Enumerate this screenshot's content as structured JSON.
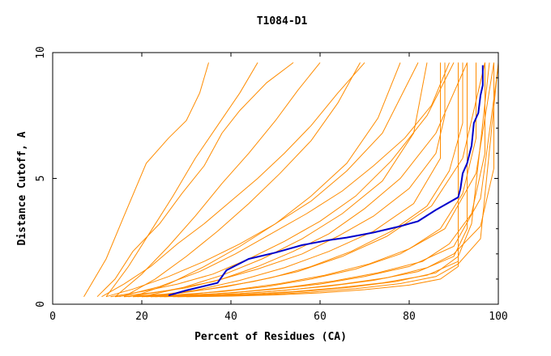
{
  "chart_data": {
    "type": "line",
    "title": "T1084-D1",
    "xlabel": "Percent of Residues (CA)",
    "ylabel": "Distance Cutoff, A",
    "xlim": [
      0,
      100
    ],
    "ylim": [
      0,
      10
    ],
    "xticks": [
      0,
      20,
      40,
      60,
      80,
      100
    ],
    "yticks": [
      0,
      5,
      10
    ],
    "grid": false,
    "colors": {
      "highlight": "#0000cc",
      "background_series": "#ff8c00",
      "frame": "#000000"
    },
    "highlight_series": {
      "x": [
        26,
        30,
        37,
        39,
        44,
        50,
        56,
        62,
        66,
        72,
        78,
        82,
        86,
        91,
        91.5,
        92,
        93,
        94,
        94.5,
        95.5,
        96,
        96.5,
        96.5
      ],
      "y": [
        0.35,
        0.55,
        0.85,
        1.35,
        1.8,
        2.05,
        2.35,
        2.55,
        2.65,
        2.85,
        3.1,
        3.3,
        3.75,
        4.25,
        4.6,
        5.2,
        5.6,
        6.3,
        7.2,
        7.6,
        8.3,
        8.7,
        9.5
      ]
    },
    "background_series": [
      {
        "x": [
          7,
          12,
          16,
          21,
          26,
          30,
          33,
          35
        ],
        "y": [
          0.3,
          1.8,
          3.5,
          5.6,
          6.6,
          7.3,
          8.4,
          9.6
        ]
      },
      {
        "x": [
          10,
          14,
          18,
          24,
          29,
          34,
          38,
          42,
          48,
          54
        ],
        "y": [
          0.3,
          1.0,
          2.1,
          3.2,
          4.4,
          5.5,
          6.8,
          7.7,
          8.8,
          9.6
        ]
      },
      {
        "x": [
          11,
          16,
          22,
          28,
          34,
          40,
          46,
          52,
          58,
          64,
          70
        ],
        "y": [
          0.3,
          0.8,
          1.5,
          2.4,
          3.2,
          4.1,
          5.0,
          6.0,
          7.1,
          8.4,
          9.6
        ]
      },
      {
        "x": [
          12,
          18,
          26,
          34,
          42,
          50,
          58,
          66,
          74,
          82
        ],
        "y": [
          0.3,
          0.6,
          1.1,
          1.7,
          2.4,
          3.2,
          4.1,
          5.3,
          6.8,
          9.6
        ]
      },
      {
        "x": [
          13,
          20,
          28,
          36,
          44,
          52,
          60,
          68,
          76,
          84,
          90
        ],
        "y": [
          0.3,
          0.5,
          0.8,
          1.2,
          1.8,
          2.5,
          3.3,
          4.3,
          5.7,
          7.5,
          9.6
        ]
      },
      {
        "x": [
          14,
          22,
          30,
          38,
          46,
          54,
          62,
          70,
          78,
          86,
          93
        ],
        "y": [
          0.3,
          0.45,
          0.65,
          1.0,
          1.5,
          2.1,
          2.8,
          3.8,
          5.0,
          6.8,
          9.6
        ]
      },
      {
        "x": [
          16,
          25,
          35,
          45,
          55,
          65,
          75,
          85,
          92,
          97
        ],
        "y": [
          0.3,
          0.4,
          0.6,
          0.9,
          1.3,
          1.9,
          2.7,
          3.9,
          5.8,
          9.6
        ]
      },
      {
        "x": [
          18,
          28,
          38,
          48,
          58,
          68,
          78,
          88,
          95,
          99
        ],
        "y": [
          0.3,
          0.38,
          0.5,
          0.7,
          1.0,
          1.4,
          2.0,
          3.0,
          5.2,
          9.6
        ]
      },
      {
        "x": [
          20,
          30,
          40,
          50,
          60,
          70,
          80,
          90,
          96,
          100
        ],
        "y": [
          0.3,
          0.36,
          0.45,
          0.6,
          0.8,
          1.1,
          1.5,
          2.3,
          4.2,
          9.5
        ]
      },
      {
        "x": [
          22,
          32,
          42,
          52,
          62,
          72,
          82,
          90,
          93,
          93
        ],
        "y": [
          0.3,
          0.34,
          0.42,
          0.55,
          0.72,
          0.95,
          1.3,
          1.9,
          3.0,
          9.6
        ]
      },
      {
        "x": [
          24,
          34,
          44,
          54,
          64,
          74,
          84,
          91,
          91
        ],
        "y": [
          0.3,
          0.33,
          0.4,
          0.5,
          0.65,
          0.85,
          1.15,
          1.7,
          9.6
        ]
      },
      {
        "x": [
          15,
          24,
          33,
          41,
          49,
          57,
          65,
          72,
          79,
          85,
          89
        ],
        "y": [
          0.3,
          0.7,
          1.3,
          2.0,
          2.8,
          3.6,
          4.5,
          5.5,
          6.6,
          7.9,
          9.6
        ]
      },
      {
        "x": [
          17,
          26,
          36,
          46,
          56,
          64,
          72,
          80,
          86,
          88,
          88
        ],
        "y": [
          0.3,
          0.55,
          0.9,
          1.4,
          2.0,
          2.7,
          3.5,
          4.6,
          6.0,
          7.5,
          9.6
        ]
      },
      {
        "x": [
          19,
          29,
          39,
          49,
          58,
          67,
          76,
          84,
          89,
          92,
          92
        ],
        "y": [
          0.3,
          0.45,
          0.7,
          1.05,
          1.5,
          2.1,
          2.9,
          3.9,
          5.3,
          7.2,
          9.6
        ]
      },
      {
        "x": [
          21,
          31,
          41,
          51,
          61,
          71,
          80,
          87,
          92,
          95,
          95
        ],
        "y": [
          0.3,
          0.4,
          0.58,
          0.82,
          1.15,
          1.6,
          2.2,
          3.0,
          4.4,
          6.6,
          9.6
        ]
      },
      {
        "x": [
          23,
          33,
          43,
          53,
          63,
          73,
          83,
          89,
          94,
          97,
          97
        ],
        "y": [
          0.3,
          0.37,
          0.5,
          0.68,
          0.92,
          1.25,
          1.7,
          2.4,
          3.6,
          6.0,
          9.6
        ]
      },
      {
        "x": [
          25,
          35,
          45,
          55,
          65,
          75,
          84,
          90,
          96,
          99,
          99
        ],
        "y": [
          0.3,
          0.35,
          0.45,
          0.6,
          0.8,
          1.05,
          1.45,
          2.0,
          3.1,
          5.4,
          9.6
        ]
      },
      {
        "x": [
          12,
          17,
          22,
          27,
          32,
          37,
          42,
          46
        ],
        "y": [
          0.3,
          1.5,
          2.9,
          4.3,
          5.8,
          7.1,
          8.4,
          9.6
        ]
      },
      {
        "x": [
          14,
          20,
          26,
          32,
          38,
          44,
          50,
          55,
          60
        ],
        "y": [
          0.3,
          1.2,
          2.3,
          3.5,
          4.8,
          6.0,
          7.3,
          8.5,
          9.6
        ]
      },
      {
        "x": [
          16,
          23,
          30,
          37,
          44,
          51,
          58,
          64,
          69
        ],
        "y": [
          0.3,
          1.0,
          1.9,
          2.9,
          4.0,
          5.2,
          6.5,
          8.0,
          9.6
        ]
      },
      {
        "x": [
          18,
          26,
          34,
          42,
          50,
          58,
          66,
          73,
          78
        ],
        "y": [
          0.3,
          0.8,
          1.5,
          2.3,
          3.2,
          4.3,
          5.6,
          7.4,
          9.6
        ]
      },
      {
        "x": [
          20,
          29,
          38,
          47,
          56,
          65,
          74,
          81,
          84
        ],
        "y": [
          0.3,
          0.65,
          1.15,
          1.8,
          2.6,
          3.6,
          4.9,
          6.8,
          9.6
        ]
      },
      {
        "x": [
          22,
          32,
          42,
          52,
          62,
          72,
          81,
          87,
          87
        ],
        "y": [
          0.3,
          0.55,
          0.95,
          1.45,
          2.1,
          2.9,
          4.0,
          5.8,
          9.6
        ]
      },
      {
        "x": [
          27,
          37,
          47,
          57,
          67,
          77,
          86,
          91,
          94,
          98
        ],
        "y": [
          0.3,
          0.33,
          0.4,
          0.52,
          0.68,
          0.9,
          1.25,
          1.9,
          3.2,
          9.6
        ]
      },
      {
        "x": [
          28,
          38,
          48,
          58,
          68,
          78,
          86,
          91,
          96,
          100
        ],
        "y": [
          0.3,
          0.32,
          0.38,
          0.48,
          0.62,
          0.82,
          1.1,
          1.6,
          2.6,
          9.6
        ]
      },
      {
        "x": [
          30,
          40,
          50,
          60,
          70,
          80,
          87,
          91,
          91
        ],
        "y": [
          0.3,
          0.32,
          0.37,
          0.45,
          0.58,
          0.76,
          1.0,
          1.5,
          9.6
        ]
      }
    ]
  }
}
